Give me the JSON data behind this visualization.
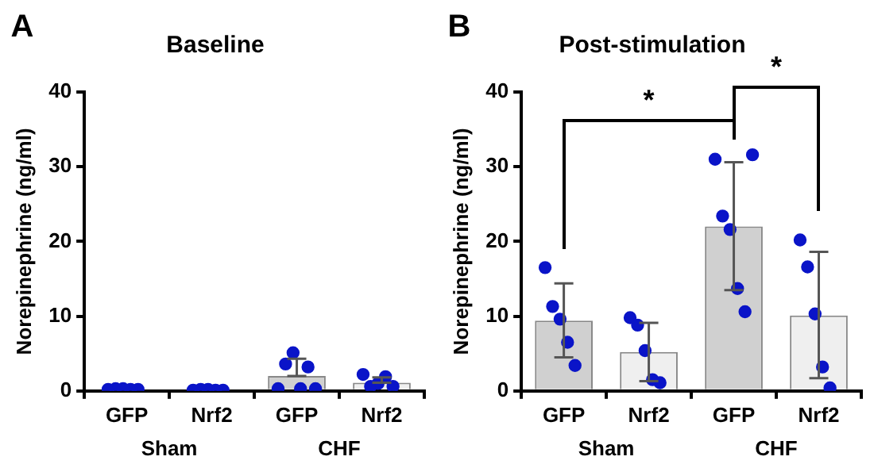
{
  "chart_data": [
    {
      "type": "bar",
      "title": "Baseline",
      "ylabel": "Norepinephrine (ng/ml)",
      "categories": [
        "GFP",
        "Nrf2",
        "GFP",
        "Nrf2"
      ],
      "ylim": [
        0,
        40
      ],
      "yticks": [
        0,
        10,
        20,
        30,
        40
      ],
      "grid": false,
      "legend": false,
      "annotations": [
        "A",
        "Sham",
        "CHF"
      ],
      "series": [
        {
          "colors": [
            "#d0d0d0",
            "#efefef",
            "#d0d0d0",
            "#efefef"
          ],
          "values": [
            null,
            null,
            2.0,
            1.1
          ],
          "errors": [
            null,
            null,
            [
              2.0,
              4.3
            ],
            [
              1.1,
              1.8
            ]
          ]
        },
        {
          "type": "scatter",
          "color": "#0a14c8",
          "marker": "circle",
          "values": [
            0.2,
            0.1,
            0.3,
            2.2
          ]
        },
        {
          "type": "scatter",
          "color": "#0a14c8",
          "marker": "circle",
          "values": [
            0.3,
            0.2,
            3.6,
            0.6
          ]
        },
        {
          "type": "scatter",
          "color": "#0a14c8",
          "marker": "circle",
          "values": [
            0.3,
            0.2,
            5.1,
            1.0
          ]
        },
        {
          "type": "scatter",
          "color": "#0a14c8",
          "marker": "circle",
          "values": [
            0.2,
            0.1,
            0.3,
            1.9
          ]
        },
        {
          "type": "scatter",
          "color": "#0a14c8",
          "marker": "circle",
          "values": [
            0.2,
            0.1,
            3.2,
            0.6
          ]
        },
        {
          "type": "scatter",
          "color": "#0a14c8",
          "marker": "circle",
          "values": [
            null,
            null,
            0.3,
            null
          ]
        }
      ]
    },
    {
      "type": "bar",
      "title": "Post-stimulation",
      "ylabel": "Norepinephrine (ng/ml)",
      "categories": [
        "GFP",
        "Nrf2",
        "GFP",
        "Nrf2"
      ],
      "ylim": [
        0,
        40
      ],
      "yticks": [
        0,
        10,
        20,
        30,
        40
      ],
      "grid": false,
      "legend": false,
      "annotations": [
        "B",
        "Sham",
        "CHF",
        "*",
        "*"
      ],
      "series": [
        {
          "colors": [
            "#d0d0d0",
            "#efefef",
            "#d0d0d0",
            "#efefef"
          ],
          "values": [
            9.4,
            5.2,
            22.0,
            10.1
          ],
          "errors": [
            [
              4.5,
              14.4
            ],
            [
              1.3,
              9.1
            ],
            [
              13.5,
              30.6
            ],
            [
              1.7,
              18.6
            ]
          ]
        },
        {
          "type": "scatter",
          "color": "#0a14c8",
          "marker": "circle",
          "values": [
            16.5,
            9.8,
            31.0,
            20.2
          ]
        },
        {
          "type": "scatter",
          "color": "#0a14c8",
          "marker": "circle",
          "values": [
            11.3,
            8.8,
            23.4,
            16.6
          ]
        },
        {
          "type": "scatter",
          "color": "#0a14c8",
          "marker": "circle",
          "values": [
            9.6,
            5.4,
            21.6,
            10.3
          ]
        },
        {
          "type": "scatter",
          "color": "#0a14c8",
          "marker": "circle",
          "values": [
            6.5,
            1.5,
            13.7,
            3.2
          ]
        },
        {
          "type": "scatter",
          "color": "#0a14c8",
          "marker": "circle",
          "values": [
            3.4,
            1.1,
            10.6,
            0.4
          ]
        },
        {
          "type": "scatter",
          "color": "#0a14c8",
          "marker": "circle",
          "values": [
            null,
            null,
            31.6,
            null
          ]
        }
      ]
    }
  ]
}
